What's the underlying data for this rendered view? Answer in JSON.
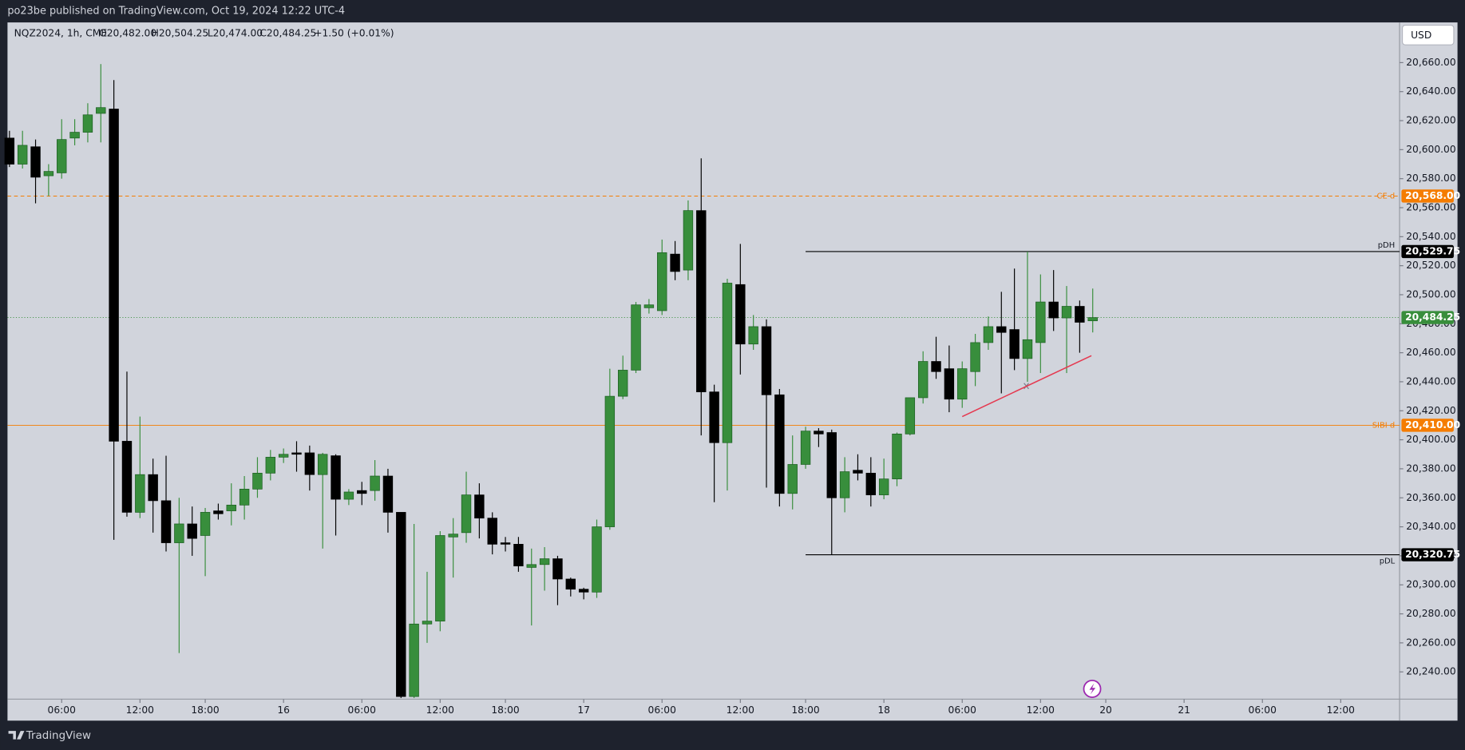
{
  "header": {
    "publisher": "po23be published on TradingView.com, Oct 19, 2024 12:22 UTC-4",
    "currency": "USD"
  },
  "footer": {
    "brand": "TradingView"
  },
  "chart_data": {
    "type": "candlestick",
    "legend": {
      "symbol": "NQZ2024, 1h, CME",
      "open": "O20,482.00",
      "high": "H20,504.25",
      "low": "L20,474.00",
      "close": "C20,484.25",
      "change": "+1.50 (+0.01%)"
    },
    "up_color": "#388e3c",
    "down_color": "#000000",
    "open": [
      20608,
      20590,
      20602,
      20582,
      20584,
      20608,
      20612,
      20625,
      20628,
      20399,
      20350,
      20376,
      20358,
      20329,
      20342,
      20334,
      20351,
      20351,
      20355,
      20366,
      20377,
      20388,
      20391,
      20391,
      20376,
      20389,
      20359,
      20365,
      20365,
      20375,
      20350,
      20223,
      20273,
      20275,
      20333,
      20336,
      20362,
      20346,
      20329,
      20328,
      20312,
      20314,
      20318,
      20304,
      20297,
      20295,
      20340,
      20430,
      20448,
      20491,
      20489,
      20528,
      20517,
      20558,
      20433,
      20398,
      20507,
      20466,
      20478,
      20431,
      20363,
      20383,
      20406,
      20405,
      20360,
      20379,
      20377,
      20362,
      20373,
      20404,
      20429,
      20454,
      20449,
      20428,
      20447,
      20467,
      20478,
      20476,
      20456,
      20467,
      20495,
      20484,
      20492,
      20482
    ],
    "high": [
      20613,
      20613,
      20607,
      20590,
      20621,
      20621,
      20632,
      20659,
      20648,
      20447,
      20416,
      20387,
      20389,
      20360,
      20354,
      20353,
      20356,
      20370,
      20375,
      20388,
      20393,
      20394,
      20399,
      20396,
      20391,
      20390,
      20366,
      20371,
      20386,
      20380,
      20350,
      20342,
      20309,
      20337,
      20346,
      20378,
      20370,
      20350,
      20333,
      20333,
      20325,
      20326,
      20320,
      20305,
      20298,
      20345,
      20449,
      20458,
      20495,
      20497,
      20538,
      20537,
      20565,
      20594,
      20438,
      20511,
      20535,
      20486,
      20483,
      20435,
      20403,
      20409,
      20408,
      20407,
      20388,
      20390,
      20388,
      20387,
      20405,
      20429,
      20461,
      20471,
      20465,
      20454,
      20473,
      20485,
      20502,
      20518,
      20529.75,
      20514,
      20517,
      20506,
      20496,
      20504.25
    ],
    "low": [
      20588,
      20587,
      20563,
      20568,
      20580,
      20603,
      20605,
      20605,
      20331,
      20347,
      20346,
      20336,
      20323,
      20253,
      20320,
      20306,
      20345,
      20341,
      20345,
      20360,
      20372,
      20384,
      20378,
      20365,
      20325,
      20334,
      20355,
      20355,
      20358,
      20336,
      20222,
      20222,
      20260,
      20268,
      20305,
      20329,
      20332,
      20321,
      20323,
      20309,
      20272,
      20296,
      20286,
      20292,
      20290,
      20291,
      20338,
      20428,
      20446,
      20487,
      20486,
      20510,
      20510,
      20403,
      20357,
      20365,
      20445,
      20462,
      20367,
      20354,
      20352,
      20380,
      20395,
      20320.75,
      20350,
      20372,
      20354,
      20359,
      20368,
      20403,
      20425,
      20442,
      20419,
      20422,
      20437,
      20462,
      20432,
      20448,
      20440,
      20446,
      20475,
      20446,
      20460,
      20474
    ],
    "close": [
      20590,
      20603,
      20581,
      20585,
      20607,
      20612,
      20624,
      20629,
      20399,
      20350,
      20376,
      20358,
      20329,
      20342,
      20332,
      20350,
      20349,
      20355,
      20366,
      20377,
      20388,
      20390,
      20390,
      20376,
      20390,
      20359,
      20364,
      20363,
      20375,
      20350,
      20223,
      20273,
      20275,
      20334,
      20335,
      20362,
      20346,
      20328,
      20328,
      20313,
      20314,
      20318,
      20304,
      20297,
      20295,
      20340,
      20430,
      20448,
      20493,
      20493,
      20529,
      20516,
      20558,
      20433,
      20398,
      20508,
      20466,
      20478,
      20431,
      20363,
      20383,
      20406,
      20404,
      20360,
      20378,
      20377,
      20362,
      20373,
      20404,
      20429,
      20454,
      20447,
      20428,
      20449,
      20467,
      20478,
      20474,
      20456,
      20469,
      20495,
      20484,
      20492,
      20481,
      20484.25
    ],
    "xlim": [
      -0.15,
      106.51
    ],
    "ylim": [
      20221.2,
      20687.7
    ],
    "grid": false,
    "xticks": [
      {
        "value": 4,
        "label": "06:00"
      },
      {
        "value": 10,
        "label": "12:00"
      },
      {
        "value": 15,
        "label": "18:00"
      },
      {
        "value": 21,
        "label": "16"
      },
      {
        "value": 27,
        "label": "06:00"
      },
      {
        "value": 33,
        "label": "12:00"
      },
      {
        "value": 38,
        "label": "18:00"
      },
      {
        "value": 44,
        "label": "17"
      },
      {
        "value": 50,
        "label": "06:00"
      },
      {
        "value": 56,
        "label": "12:00"
      },
      {
        "value": 61,
        "label": "18:00"
      },
      {
        "value": 67,
        "label": "18"
      },
      {
        "value": 73,
        "label": "06:00"
      },
      {
        "value": 79,
        "label": "12:00"
      },
      {
        "value": 84,
        "label": "20"
      },
      {
        "value": 90,
        "label": "21"
      },
      {
        "value": 96,
        "label": "06:00"
      },
      {
        "value": 102,
        "label": "12:00"
      }
    ],
    "yticks": [
      {
        "value": 20240,
        "label": "20,240.00"
      },
      {
        "value": 20260,
        "label": "20,260.00"
      },
      {
        "value": 20280,
        "label": "20,280.00"
      },
      {
        "value": 20300,
        "label": "20,300.00"
      },
      {
        "value": 20320,
        "label": "20,320.00"
      },
      {
        "value": 20340,
        "label": "20,340.00"
      },
      {
        "value": 20360,
        "label": "20,360.00"
      },
      {
        "value": 20380,
        "label": "20,380.00"
      },
      {
        "value": 20400,
        "label": "20,400.00"
      },
      {
        "value": 20420,
        "label": "20,420.00"
      },
      {
        "value": 20440,
        "label": "20,440.00"
      },
      {
        "value": 20460,
        "label": "20,460.00"
      },
      {
        "value": 20480,
        "label": "20,480.00"
      },
      {
        "value": 20500,
        "label": "20,500.00"
      },
      {
        "value": 20520,
        "label": "20,520.00"
      },
      {
        "value": 20540,
        "label": "20,540.00"
      },
      {
        "value": 20560,
        "label": "20,560.00"
      },
      {
        "value": 20580,
        "label": "20,580.00"
      },
      {
        "value": 20600,
        "label": "20,600.00"
      },
      {
        "value": 20620,
        "label": "20,620.00"
      },
      {
        "value": 20640,
        "label": "20,640.00"
      },
      {
        "value": 20660,
        "label": "20,660.00"
      }
    ],
    "levels": [
      {
        "name": "CE d",
        "value": 20568,
        "label": "20,568.00",
        "color": "#f57c00",
        "style": "dashed",
        "start": -0.15
      },
      {
        "name": "SIBI d",
        "value": 20410,
        "label": "20,410.00",
        "color": "#f57c00",
        "style": "solid",
        "start": -0.15
      },
      {
        "value": 20484.25,
        "label": "20,484.25",
        "color": "#388e3c",
        "style": "dotted",
        "start": -0.15
      },
      {
        "name": "pDH",
        "value": 20529.75,
        "label": "20,529.75",
        "color": "#000000",
        "style": "solid",
        "start": 61
      },
      {
        "name": "pDL",
        "value": 20320.75,
        "label": "20,320.75",
        "color": "#000000",
        "style": "solid",
        "start": 61
      }
    ],
    "trendline": {
      "x": [
        73,
        82.9
      ],
      "y": [
        20416,
        20458
      ],
      "color": "#e53950"
    }
  }
}
